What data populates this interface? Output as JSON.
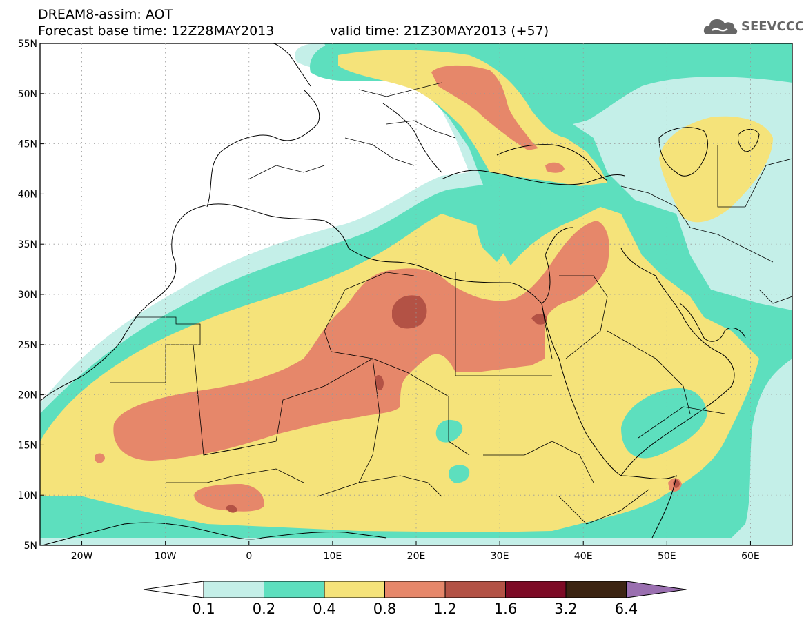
{
  "header": {
    "line1": "DREAM8-assim: AOT",
    "line2": "Forecast base time: 12Z28MAY2013",
    "valid": "valid time: 21Z30MAY2013 (+57)"
  },
  "logo": {
    "text": "SEEVCCC",
    "icon": "cloud-icon"
  },
  "map": {
    "lat_labels": [
      "55N",
      "50N",
      "45N",
      "40N",
      "35N",
      "30N",
      "25N",
      "20N",
      "15N",
      "10N",
      "5N"
    ],
    "lon_labels": [
      "20W",
      "10W",
      "0",
      "10E",
      "20E",
      "30E",
      "40E",
      "50E",
      "60E"
    ],
    "lat_range": [
      5,
      55
    ],
    "lon_range": [
      -25,
      65
    ],
    "colors": {
      "c0_1": "#c4efe8",
      "c0_2": "#5ddfbe",
      "c0_4": "#f5e37a",
      "c0_8": "#e6876a",
      "c1_2": "#b35245",
      "c1_6": "#7d0a25",
      "c3_2": "#3c2412",
      "c6_4": "#9a6fb0"
    }
  },
  "colorbar": {
    "labels": [
      "0.1",
      "0.2",
      "0.4",
      "0.8",
      "1.2",
      "1.6",
      "3.2",
      "6.4"
    ]
  }
}
